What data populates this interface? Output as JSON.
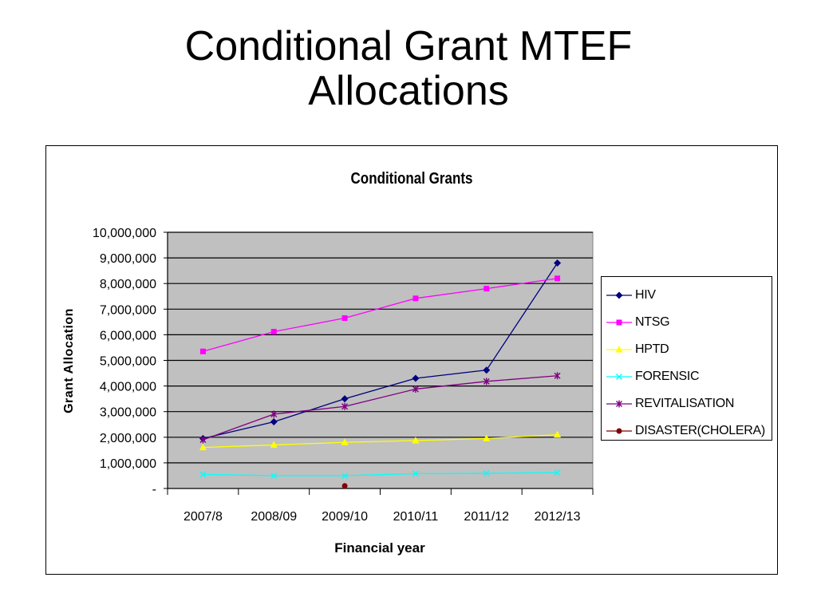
{
  "slide": {
    "title_line1": "Conditional Grant MTEF",
    "title_line2": "Allocations"
  },
  "chart_data": {
    "type": "line",
    "title": "Conditional Grants",
    "xlabel": "Financial year",
    "ylabel": "Grant Allocation",
    "ylim": [
      0,
      10000000
    ],
    "yticks": [
      0,
      1000000,
      2000000,
      3000000,
      4000000,
      5000000,
      6000000,
      7000000,
      8000000,
      9000000,
      10000000
    ],
    "ytick_labels": [
      "-",
      "1,000,000",
      "2,000,000",
      "3,000,000",
      "4,000,000",
      "5,000,000",
      "6,000,000",
      "7,000,000",
      "8,000,000",
      "9,000,000",
      "10,000,000"
    ],
    "categories": [
      "2007/8",
      "2008/09",
      "2009/10",
      "2010/11",
      "2011/12",
      "2012/13"
    ],
    "grid": true,
    "plot_background": "#c0c0c0",
    "legend_position": "right",
    "series": [
      {
        "name": "HIV",
        "color": "#000080",
        "marker": "diamond",
        "values": [
          1950000,
          2600000,
          3500000,
          4300000,
          4620000,
          8800000
        ]
      },
      {
        "name": "NTSG",
        "color": "#ff00ff",
        "marker": "square",
        "values": [
          5350000,
          6120000,
          6650000,
          7420000,
          7800000,
          8200000
        ]
      },
      {
        "name": "HPTD",
        "color": "#ffff00",
        "marker": "triangle",
        "values": [
          1600000,
          1700000,
          1800000,
          1870000,
          1950000,
          2100000
        ]
      },
      {
        "name": "FORENSIC",
        "color": "#00ffff",
        "marker": "x",
        "values": [
          550000,
          500000,
          500000,
          580000,
          590000,
          620000
        ]
      },
      {
        "name": "REVITALISATION",
        "color": "#800080",
        "marker": "star",
        "values": [
          1900000,
          2900000,
          3200000,
          3880000,
          4180000,
          4400000
        ]
      },
      {
        "name": "DISASTER(CHOLERA)",
        "color": "#800000",
        "marker": "circle",
        "values": [
          null,
          null,
          100000,
          null,
          null,
          null
        ]
      }
    ]
  }
}
